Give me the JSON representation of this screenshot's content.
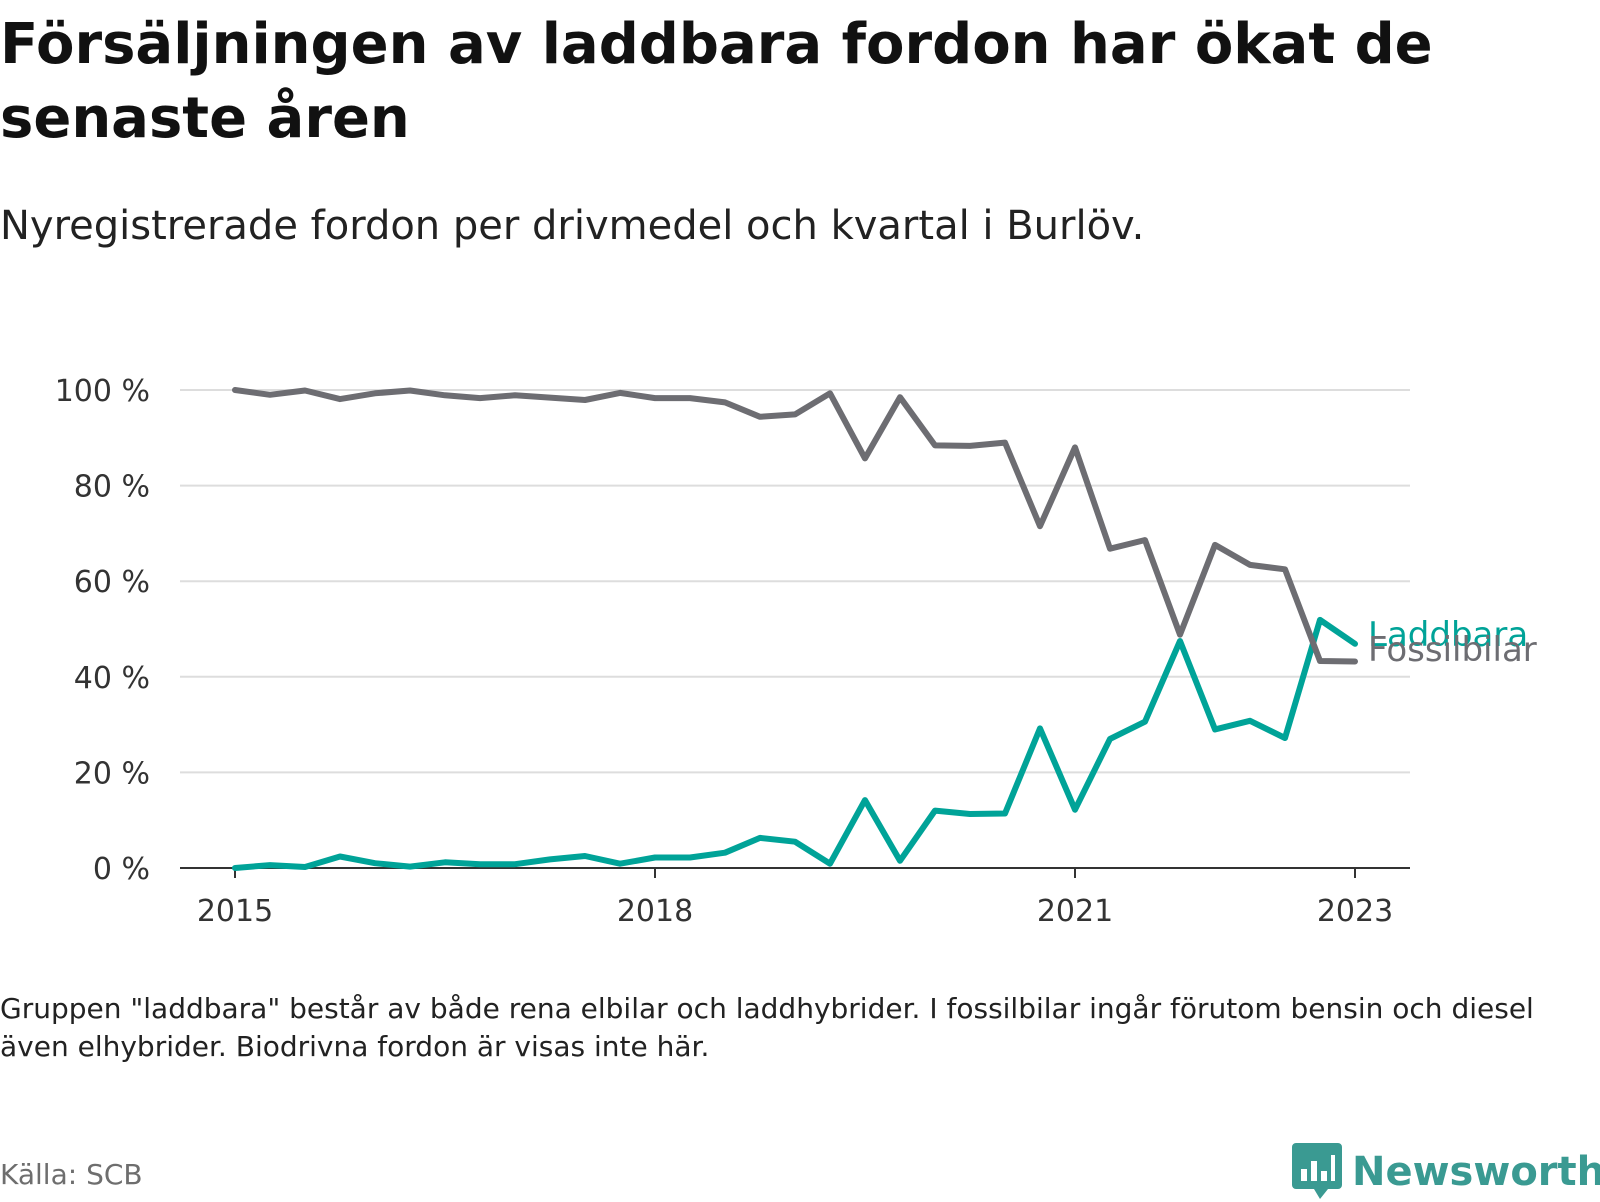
{
  "title": "Försäljningen av laddbara fordon har ökat de senaste åren",
  "subtitle": "Nyregistrerade fordon per drivmedel och kvartal i Burlöv.",
  "footnote": "Gruppen \"laddbara\" består av både rena elbilar och laddhybrider. I fossilbilar ingår förutom bensin och diesel även elhybrider. Biodrivna fordon är visas inte här.",
  "source": "Källa: SCB",
  "brand": "Newsworthy",
  "colors": {
    "laddbara": "#00a398",
    "fossilbilar": "#6d6d72",
    "brand": "#3a9a92",
    "grid": "#dddddd"
  },
  "icons": {
    "brand_logo": "bar-chart-speech-bubble-icon"
  },
  "chart_data": {
    "type": "line",
    "ylim": [
      0,
      100
    ],
    "yticks": [
      0,
      20,
      40,
      60,
      80,
      100
    ],
    "ytick_labels": [
      "0 %",
      "20 %",
      "40 %",
      "60 %",
      "80 %",
      "100 %"
    ],
    "xlim": [
      2015.0,
      2023.0
    ],
    "xticks": [
      2015,
      2018,
      2021,
      2023
    ],
    "xtick_labels": [
      "2015",
      "2018",
      "2021",
      "2023"
    ],
    "grid": true,
    "legend": "direct labels at line ends",
    "x": [
      2015.0,
      2015.25,
      2015.5,
      2015.75,
      2016.0,
      2016.25,
      2016.5,
      2016.75,
      2017.0,
      2017.25,
      2017.5,
      2017.75,
      2018.0,
      2018.25,
      2018.5,
      2018.75,
      2019.0,
      2019.25,
      2019.5,
      2019.75,
      2020.0,
      2020.25,
      2020.5,
      2020.75,
      2021.0,
      2021.25,
      2021.5,
      2021.75,
      2022.0,
      2022.25,
      2022.5,
      2022.75,
      2023.0
    ],
    "series": [
      {
        "name": "Laddbara",
        "color": "#00a398",
        "values": [
          0.0,
          0.6,
          0.2,
          2.4,
          1.0,
          0.3,
          1.2,
          0.8,
          0.8,
          1.8,
          2.5,
          0.9,
          2.2,
          2.2,
          3.2,
          6.3,
          5.5,
          0.9,
          14.2,
          1.5,
          12.0,
          11.3,
          11.4,
          29.2,
          12.2,
          27.0,
          30.6,
          47.5,
          29.0,
          30.8,
          27.2,
          51.9,
          46.9
        ]
      },
      {
        "name": "Fossilbilar",
        "color": "#6d6d72",
        "values": [
          100.0,
          99.0,
          99.9,
          98.1,
          99.3,
          99.9,
          98.9,
          98.3,
          98.9,
          98.4,
          97.9,
          99.4,
          98.3,
          98.3,
          97.4,
          94.4,
          94.9,
          99.3,
          85.7,
          98.5,
          88.4,
          88.3,
          89.0,
          71.5,
          88.0,
          66.8,
          68.6,
          48.8,
          67.6,
          63.4,
          62.5,
          43.3,
          43.2
        ]
      }
    ]
  }
}
